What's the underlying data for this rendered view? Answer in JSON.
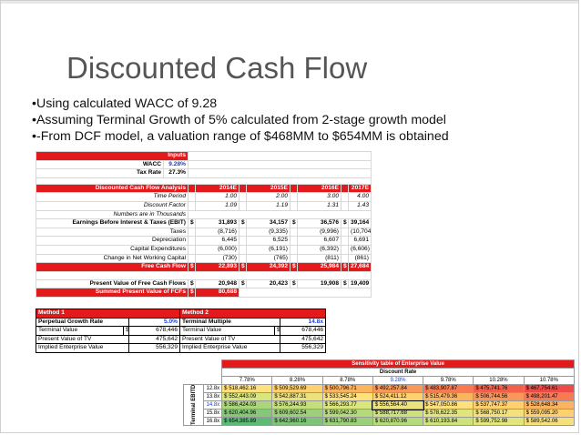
{
  "title": "Discounted Cash Flow",
  "bullets": [
    "•Using calculated WACC of 9.28",
    "•Assuming Terminal Growth of 5% calculated from 2-stage growth model",
    "•-From DCF model, a valuation range of $468MM to $654MM is obtained"
  ],
  "inputs": {
    "header": "Inputs",
    "wacc_label": "WACC",
    "wacc_value": "9.28%",
    "tax_label": "Tax Rate",
    "tax_value": "27.3%"
  },
  "dcf": {
    "header_label": "Discounted Cash Flow Analysis",
    "years": [
      "2014E",
      "2015E",
      "2016E",
      "2017E"
    ],
    "time_period_label": "Time Period",
    "time_period": [
      "1.00",
      "2.00",
      "3.00",
      "4.00"
    ],
    "discount_factor_label": "Discount Factor",
    "discount_factor": [
      "1.09",
      "1.19",
      "1.31",
      "1.43"
    ],
    "numbers_note": "Numbers are in Thousands",
    "ebit_label": "Earnings Before Interest & Taxes (EBIT)",
    "ebit": [
      "31,893",
      "34,157",
      "36,576",
      "39,164"
    ],
    "taxes_label": "Taxes",
    "taxes": [
      "(8,716)",
      "(9,335)",
      "(9,996)",
      "(10,704)"
    ],
    "dep_label": "Depreciation",
    "dep": [
      "6,445",
      "6,525",
      "6,607",
      "6,691"
    ],
    "capex_label": "Capital Expenditures",
    "capex": [
      "(6,000)",
      "(6,191)",
      "(6,392)",
      "(6,606)"
    ],
    "nwc_label": "Change in Net Working Capital",
    "nwc": [
      "(730)",
      "(765)",
      "(811)",
      "(861)"
    ],
    "fcf_label": "Free Cash Flow",
    "fcf": [
      "22,893",
      "24,392",
      "25,984",
      "27,684"
    ],
    "pv_label": "Present Value of Free Cash Flows",
    "pv": [
      "20,948",
      "20,423",
      "19,908",
      "19,409"
    ],
    "sum_label": "Summed Present Value of FCFs",
    "sum_value": "80,688",
    "currency": "$"
  },
  "method1": {
    "header": "Method 1",
    "pgr_label": "Perpetual Growth Rate",
    "pgr_value": "5.0%",
    "tv_label": "Terminal Value",
    "tv_value": "678,446",
    "pvtv_label": "Present Value of TV",
    "pvtv_value": "475,642",
    "iev_label": "Implied Enterprise Value",
    "iev_value": "556,329"
  },
  "method2": {
    "header": "Method 2",
    "tm_label": "Terminal Multiple",
    "tm_value": "14.8x",
    "tv_label": "Terminal Value",
    "tv_value": "678,446",
    "pvtv_label": "Present Value of TV",
    "pvtv_value": "475,642",
    "iev_label": "Implied Enterprise Value",
    "iev_value": "556,329"
  },
  "sensitivity": {
    "title": "Sensitivity table of Enterprise Value",
    "col_header": "Discount Rate",
    "row_header": "Terminal EBITDA Multiple",
    "rates": [
      "7.78%",
      "8.28%",
      "8.78%",
      "9.28%",
      "9.78%",
      "10.28%",
      "10.78%"
    ],
    "multiples": [
      "12.8x",
      "13.8x",
      "14.8x",
      "15.8x",
      "16.8x"
    ],
    "values": [
      [
        "518,462.16",
        "509,529.69",
        "500,796.71",
        "492,257.84",
        "483,907.87",
        "475,741.76",
        "467,754.61"
      ],
      [
        "552,443.09",
        "542,887.31",
        "533,545.24",
        "524,411.12",
        "515,479.36",
        "506,744.56",
        "498,201.47"
      ],
      [
        "586,424.03",
        "576,244.93",
        "566,293.77",
        "556,564.40",
        "547,050.86",
        "537,747.37",
        "528,648.34"
      ],
      [
        "620,404.96",
        "609,602.54",
        "599,042.30",
        "588,717.68",
        "578,622.35",
        "568,750.17",
        "559,095.20"
      ],
      [
        "654,385.89",
        "642,960.16",
        "631,790.83",
        "620,870.96",
        "610,193.84",
        "599,752.98",
        "589,542.06"
      ]
    ],
    "colors": [
      [
        "#ffe07a",
        "#ffd06e",
        "#fcb35f",
        "#f9975a",
        "#f77a52",
        "#f2604c",
        "#ee4a47"
      ],
      [
        "#d9e67c",
        "#ece27c",
        "#ffe07a",
        "#ffd06e",
        "#fcb35f",
        "#f9975a",
        "#f77a52"
      ],
      [
        "#aad57a",
        "#c4de7c",
        "#d9e67c",
        "#ece27c",
        "#ffe07a",
        "#ffd06e",
        "#fcb35f"
      ],
      [
        "#86c879",
        "#9dd07a",
        "#b5da7b",
        "#cde27c",
        "#e1e57c",
        "#f5e17b",
        "#ffd06e"
      ],
      [
        "#5cba77",
        "#7ec478",
        "#9ccf79",
        "#b5da7b",
        "#cde27c",
        "#e1e57c",
        "#f5e17b"
      ]
    ]
  }
}
